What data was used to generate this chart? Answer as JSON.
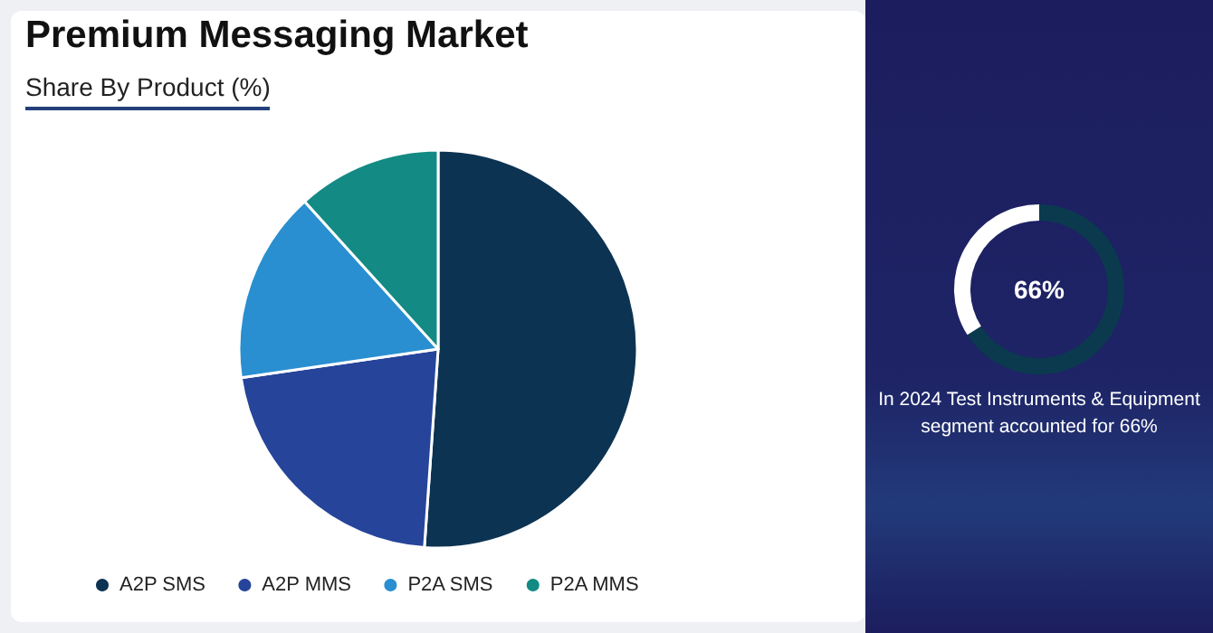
{
  "chart_data": [
    {
      "type": "pie",
      "title": "Premium Messaging Market",
      "subtitle": "Share By Product (%)",
      "categories": [
        "A2P SMS",
        "A2P MMS",
        "P2A SMS",
        "P2A MMS"
      ],
      "values": [
        51.1,
        21.6,
        15.6,
        11.7
      ],
      "colors": [
        "#0d3352",
        "#25449a",
        "#2a8fd0",
        "#138a84"
      ],
      "legend": "bottom"
    },
    {
      "type": "donut",
      "categories": [
        null,
        null
      ],
      "values": [
        66,
        34
      ],
      "colors": [
        "#0b3a4f",
        "#ffffff"
      ],
      "annotations": [
        "66%",
        "In 2024 Test Instruments & Equipment segment accounted for 66%"
      ]
    }
  ]
}
